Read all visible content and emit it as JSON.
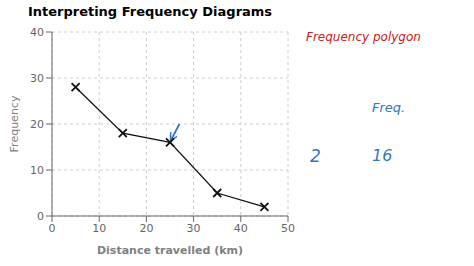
{
  "chart_data": {
    "type": "line",
    "title": "Interpreting Frequency Diagrams",
    "x_label": "Distance travelled (km)",
    "y_label": "Frequency",
    "x": [
      5,
      15,
      25,
      35,
      45
    ],
    "values": [
      28,
      18,
      16,
      5,
      2
    ],
    "color": "#111111",
    "marker": "x",
    "xlim": [
      0,
      50
    ],
    "ylim": [
      0,
      40
    ],
    "xticks": [
      0,
      10,
      20,
      30,
      40,
      50
    ],
    "yticks": [
      0,
      10,
      20,
      30,
      40
    ],
    "grid": true,
    "arrows": [
      {
        "x": 27,
        "y": 20,
        "x_end": 25.2,
        "y_end": 16.5,
        "color": "#3377bb"
      }
    ],
    "annotations": [
      {
        "text": "Frequency polygon",
        "color": "#cc2222"
      },
      {
        "text": "Freq.",
        "color": "#3377bb"
      },
      {
        "text": "16",
        "color": "#3377bb"
      },
      {
        "text": "2",
        "color": "#3377bb"
      }
    ]
  }
}
